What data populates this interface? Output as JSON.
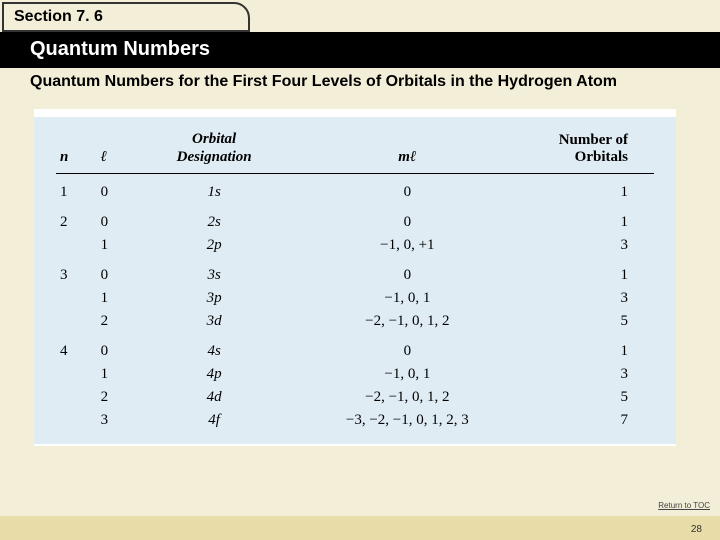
{
  "section": {
    "label": "Section 7. 6"
  },
  "header": {
    "title": "Quantum Numbers"
  },
  "subtitle": "Quantum Numbers for the First Four Levels of Orbitals in the Hydrogen Atom",
  "table": {
    "head": {
      "n": "n",
      "l": "ℓ",
      "orb1": "Orbital",
      "orb2": "Designation",
      "ml": "mℓ",
      "num": "Number of Orbitals"
    },
    "rows": [
      {
        "n": "1",
        "l": "0",
        "orb": "1s",
        "ml": "0",
        "num": "1",
        "group": true
      },
      {
        "n": "2",
        "l": "0",
        "orb": "2s",
        "ml": "0",
        "num": "1",
        "group": true
      },
      {
        "n": "",
        "l": "1",
        "orb": "2p",
        "ml": "−1, 0, +1",
        "num": "3",
        "group": false
      },
      {
        "n": "3",
        "l": "0",
        "orb": "3s",
        "ml": "0",
        "num": "1",
        "group": true
      },
      {
        "n": "",
        "l": "1",
        "orb": "3p",
        "ml": "−1, 0, 1",
        "num": "3",
        "group": false
      },
      {
        "n": "",
        "l": "2",
        "orb": "3d",
        "ml": "−2, −1, 0, 1, 2",
        "num": "5",
        "group": false
      },
      {
        "n": "4",
        "l": "0",
        "orb": "4s",
        "ml": "0",
        "num": "1",
        "group": true
      },
      {
        "n": "",
        "l": "1",
        "orb": "4p",
        "ml": "−1, 0, 1",
        "num": "3",
        "group": false
      },
      {
        "n": "",
        "l": "2",
        "orb": "4d",
        "ml": "−2, −1, 0, 1, 2",
        "num": "5",
        "group": false
      },
      {
        "n": "",
        "l": "3",
        "orb": "4f",
        "ml": "−3, −2, −1, 0, 1, 2, 3",
        "num": "7",
        "group": false
      }
    ]
  },
  "returnLink": "Return to TOC",
  "pageNumber": "28",
  "colors": {
    "page_bg": "#f3eed7",
    "header_bg": "#000000",
    "table_bg": "#e0ecf4",
    "footer_bg": "#e8dca8"
  }
}
